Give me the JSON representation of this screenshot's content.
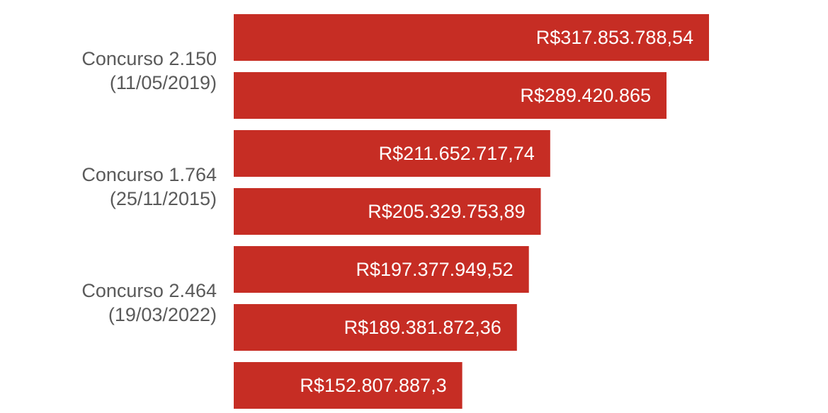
{
  "chart_data": {
    "type": "bar",
    "orientation": "horizontal",
    "bar_color": "#c62d24",
    "label_color": "#ffffff",
    "category_label_color": "#5a5a5a",
    "categories": [
      "",
      "Concurso 2.150\n(11/05/2019)",
      "",
      "Concurso 1.764\n(25/11/2015)",
      "",
      "Concurso 2.464\n(19/03/2022)",
      ""
    ],
    "values": [
      317853788.54,
      289420865,
      211652717.74,
      205329753.89,
      197377949.52,
      189381872.36,
      152807887.3
    ],
    "value_labels": [
      "R$317.853.788,54",
      "R$289.420.865",
      "R$211.652.717,74",
      "R$205.329.753,89",
      "R$197.377.949,52",
      "R$189.381.872,36",
      "R$152.807.887,3"
    ],
    "xlim": [
      0,
      317853788.54
    ],
    "grid": false,
    "title": "",
    "xlabel": "",
    "ylabel": ""
  }
}
